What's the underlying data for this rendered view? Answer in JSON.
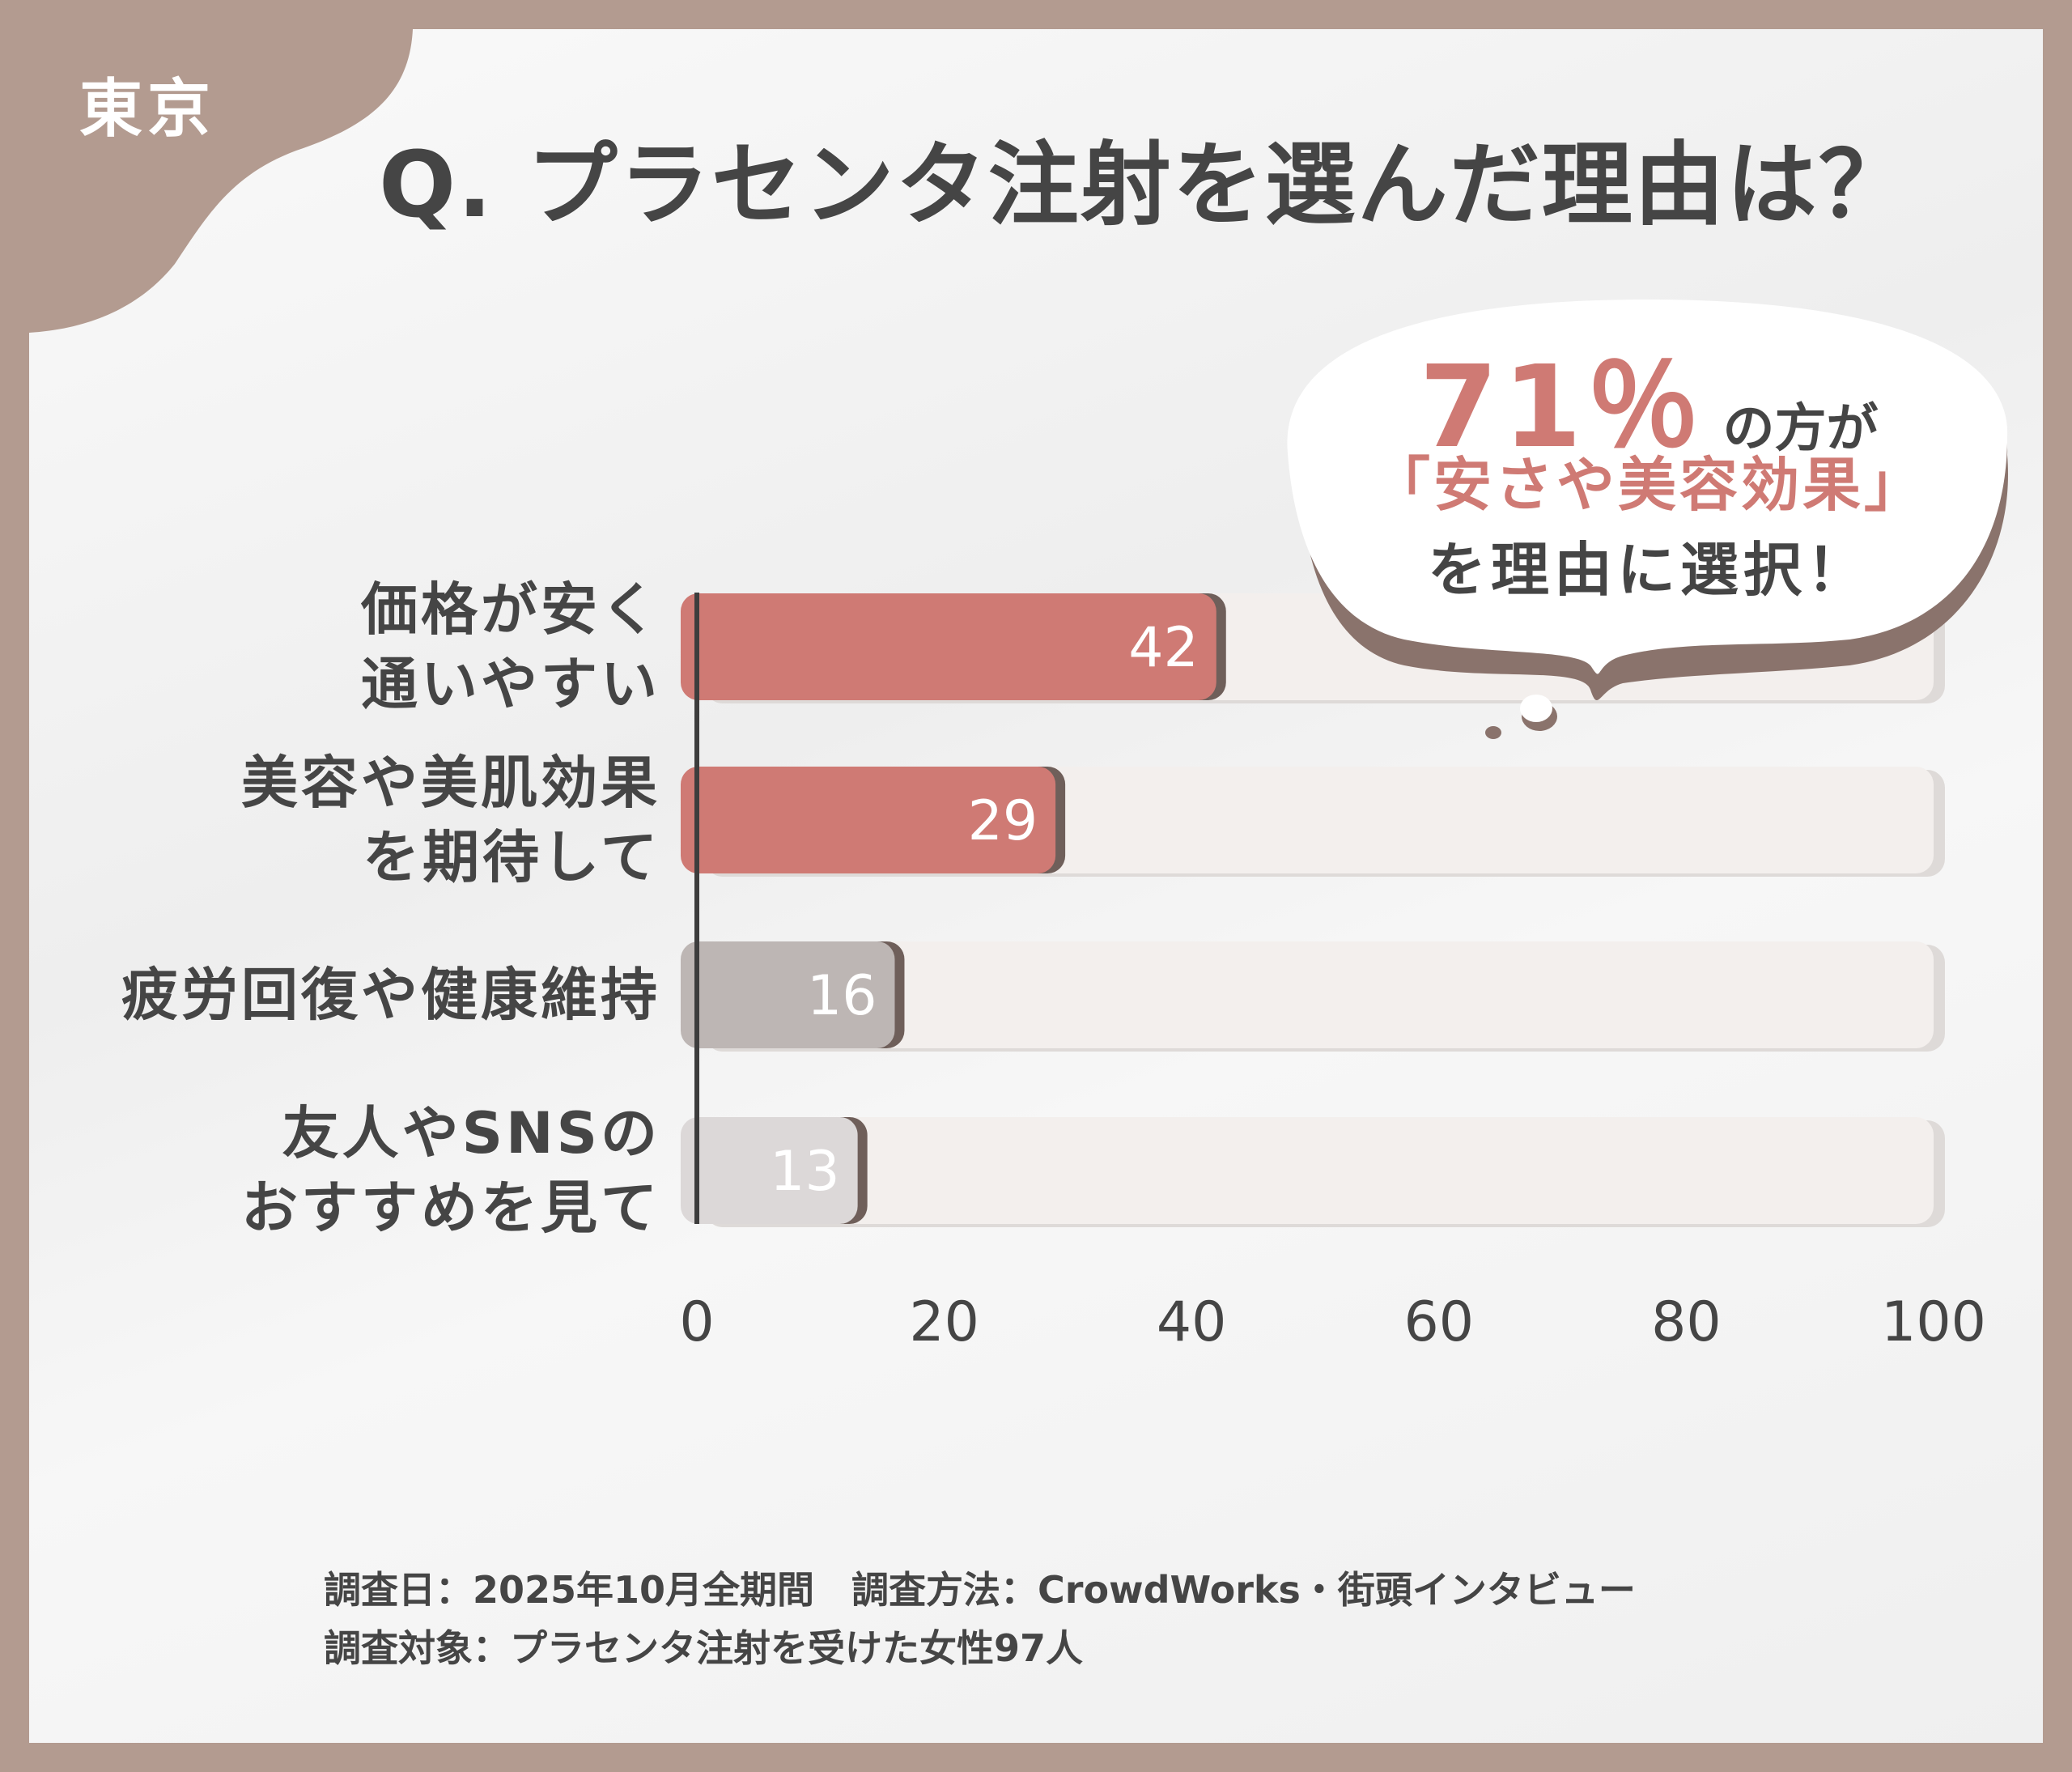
{
  "region_badge": "東京",
  "title": "Q. プラセンタ注射を選んだ理由は？",
  "callout": {
    "percent": "71％",
    "line1_suffix": "の方が",
    "line2": "「安さや美容効果」",
    "line3": "を理由に選択！"
  },
  "chart_data": {
    "type": "bar",
    "orientation": "horizontal",
    "categories": [
      [
        "価格が安く",
        "通いやすい"
      ],
      [
        "美容や美肌効果",
        "を期待して"
      ],
      [
        "疲労回復や健康維持"
      ],
      [
        "友人やSNSの",
        "おすすめを見て"
      ]
    ],
    "values": [
      42,
      29,
      16,
      13
    ],
    "bar_colors": [
      "#cf7a74",
      "#cf7a74",
      "#bdb6b4",
      "#dcd8d8"
    ],
    "track_color": "#f3efed",
    "xlim": [
      0,
      100
    ],
    "xticks": [
      "0",
      "20",
      "40",
      "60",
      "80",
      "100"
    ],
    "grid": false
  },
  "footer": {
    "line1": "調査日：2025年10月全期間　調査方法：CrowdWorks・街頭インタビュー",
    "line2": "調査対象：プラセンタ注射を受けた女性97人"
  }
}
